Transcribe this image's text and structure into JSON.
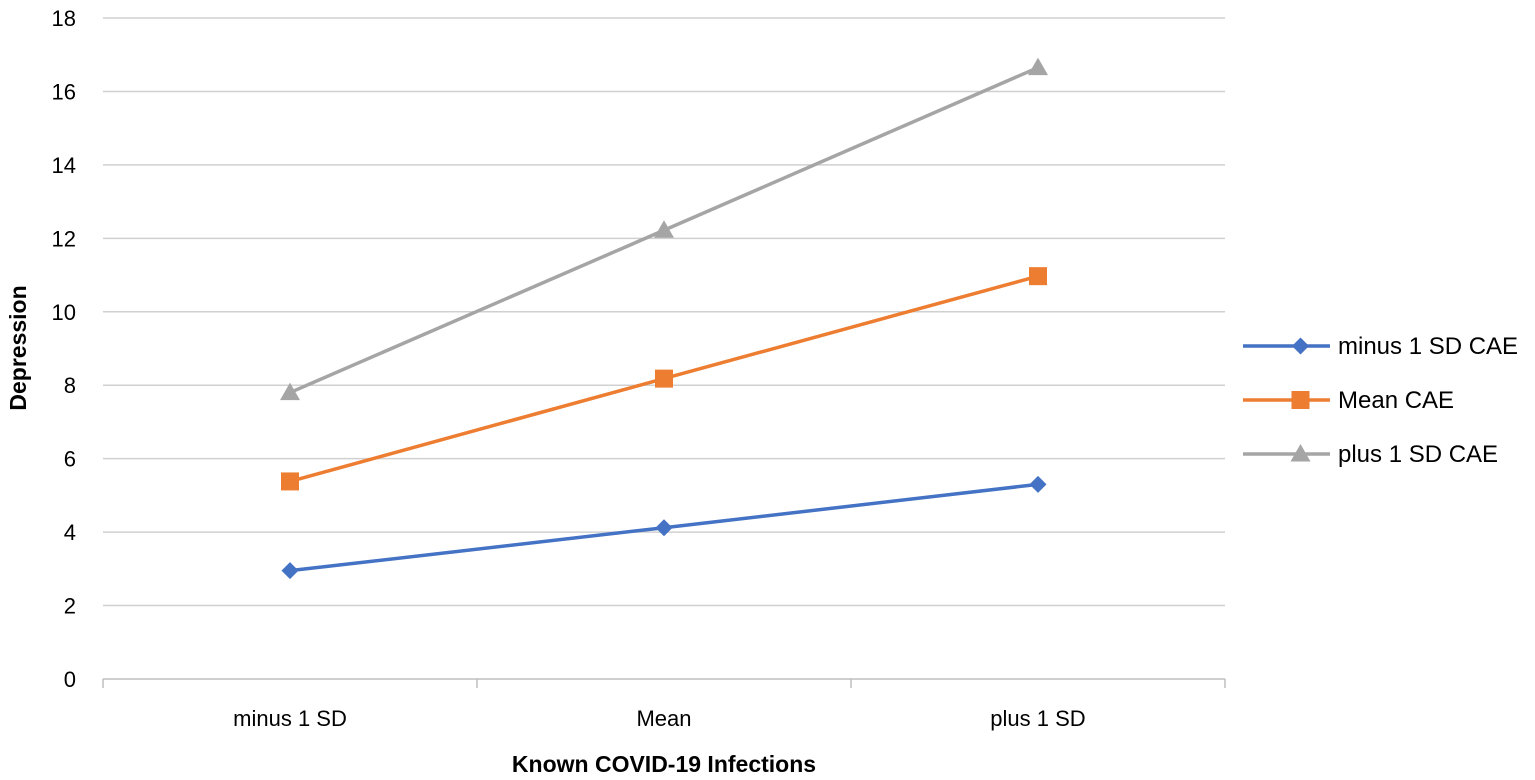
{
  "chart_data": {
    "type": "line",
    "title": "",
    "xlabel": "Known COVID-19 Infections",
    "ylabel": "Depression",
    "categories": [
      "minus 1 SD",
      "Mean",
      "plus 1 SD"
    ],
    "ylim": [
      0,
      18
    ],
    "yticks": [
      0,
      2,
      4,
      6,
      8,
      10,
      12,
      14,
      16,
      18
    ],
    "grid": "horizontal",
    "legend_position": "right",
    "series": [
      {
        "name": "minus 1 SD CAE",
        "values": [
          2.95,
          4.12,
          5.3
        ],
        "color": "#4472C4",
        "marker": "diamond"
      },
      {
        "name": "Mean CAE",
        "values": [
          5.38,
          8.18,
          10.97
        ],
        "color": "#ED7D31",
        "marker": "square"
      },
      {
        "name": "plus 1 SD CAE",
        "values": [
          7.8,
          12.22,
          16.65
        ],
        "color": "#A5A5A5",
        "marker": "triangle"
      }
    ]
  }
}
